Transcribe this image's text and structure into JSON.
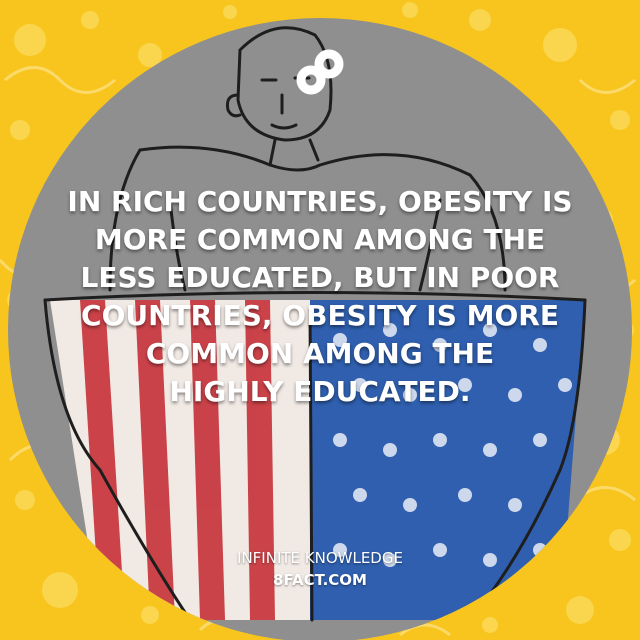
{
  "post": {
    "fact_lines": [
      "IN RICH COUNTRIES, OBESITY IS",
      "MORE COMMON AMONG THE",
      "LESS EDUCATED, BUT IN POOR",
      "COUNTRIES, OBESITY IS MORE",
      "COMMON AMONG THE",
      "HIGHLY EDUCATED."
    ]
  },
  "footer": {
    "tagline": "INFINITE KNOWLEDGE",
    "site": "8FACT.COM"
  },
  "colors": {
    "background_yellow": "#f7c51e",
    "circle_gray": "#8f8f8f",
    "stripe_red": "#c4262e",
    "union_blue": "#2f5fae",
    "text_white": "#ffffff"
  },
  "icons": {
    "logo": "infinity-8-icon"
  }
}
